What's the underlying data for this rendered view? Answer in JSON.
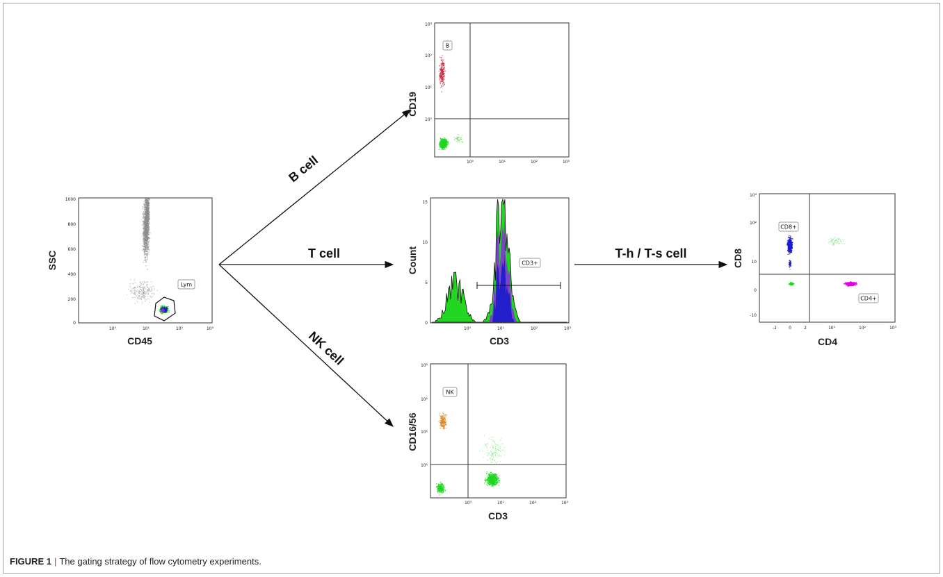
{
  "caption": {
    "label": "FIGURE 1",
    "separator": "|",
    "text": "The gating strategy of flow cytometry experiments."
  },
  "arrows": {
    "b": "B cell",
    "t": "T cell",
    "nk": "NK cell",
    "th": "T-h / T-s cell"
  },
  "plots": {
    "lym": {
      "xlabel": "CD45",
      "ylabel": "SSC",
      "gate": "Lym",
      "yticks": [
        "1000",
        "800",
        "600",
        "400",
        "200",
        "0"
      ],
      "xticks": [
        "10⁰",
        "10¹",
        "10²",
        "10³"
      ]
    },
    "b": {
      "xlabel": "",
      "ylabel": "CD19",
      "gate": "B",
      "yticks": [
        "10³",
        "10²",
        "10¹",
        "10⁰"
      ],
      "xticks": [
        "10⁰",
        "10¹",
        "10²",
        "10³"
      ]
    },
    "t": {
      "xlabel": "CD3",
      "ylabel": "Count",
      "gate": "CD3+",
      "yticks": [
        "15",
        "10",
        "5",
        "0"
      ],
      "xticks": [
        "10⁰",
        "10¹",
        "10²",
        "10³"
      ]
    },
    "nk": {
      "xlabel": "CD3",
      "ylabel": "CD16/56",
      "gate": "NK",
      "yticks": [
        "10³",
        "10²",
        "10¹",
        "10⁰"
      ],
      "xticks": [
        "10⁰",
        "10¹",
        "10²",
        "10³"
      ]
    },
    "cd4": {
      "xlabel": "CD4",
      "ylabel": "CD8",
      "gate_q1": "CD8+",
      "gate_q4": "CD4+",
      "yticks": [
        "10³",
        "10²",
        "10",
        "0",
        "-10"
      ],
      "xticks": [
        "-2",
        "0",
        "2",
        "10¹",
        "10²",
        "10³"
      ]
    }
  },
  "colors": {
    "gray": "#8c8c8c",
    "green": "#22d622",
    "blue": "#1a1acc",
    "red": "#c8283c",
    "orange": "#d98a2b",
    "magenta": "#e000e0",
    "purple": "#8a2be2"
  }
}
